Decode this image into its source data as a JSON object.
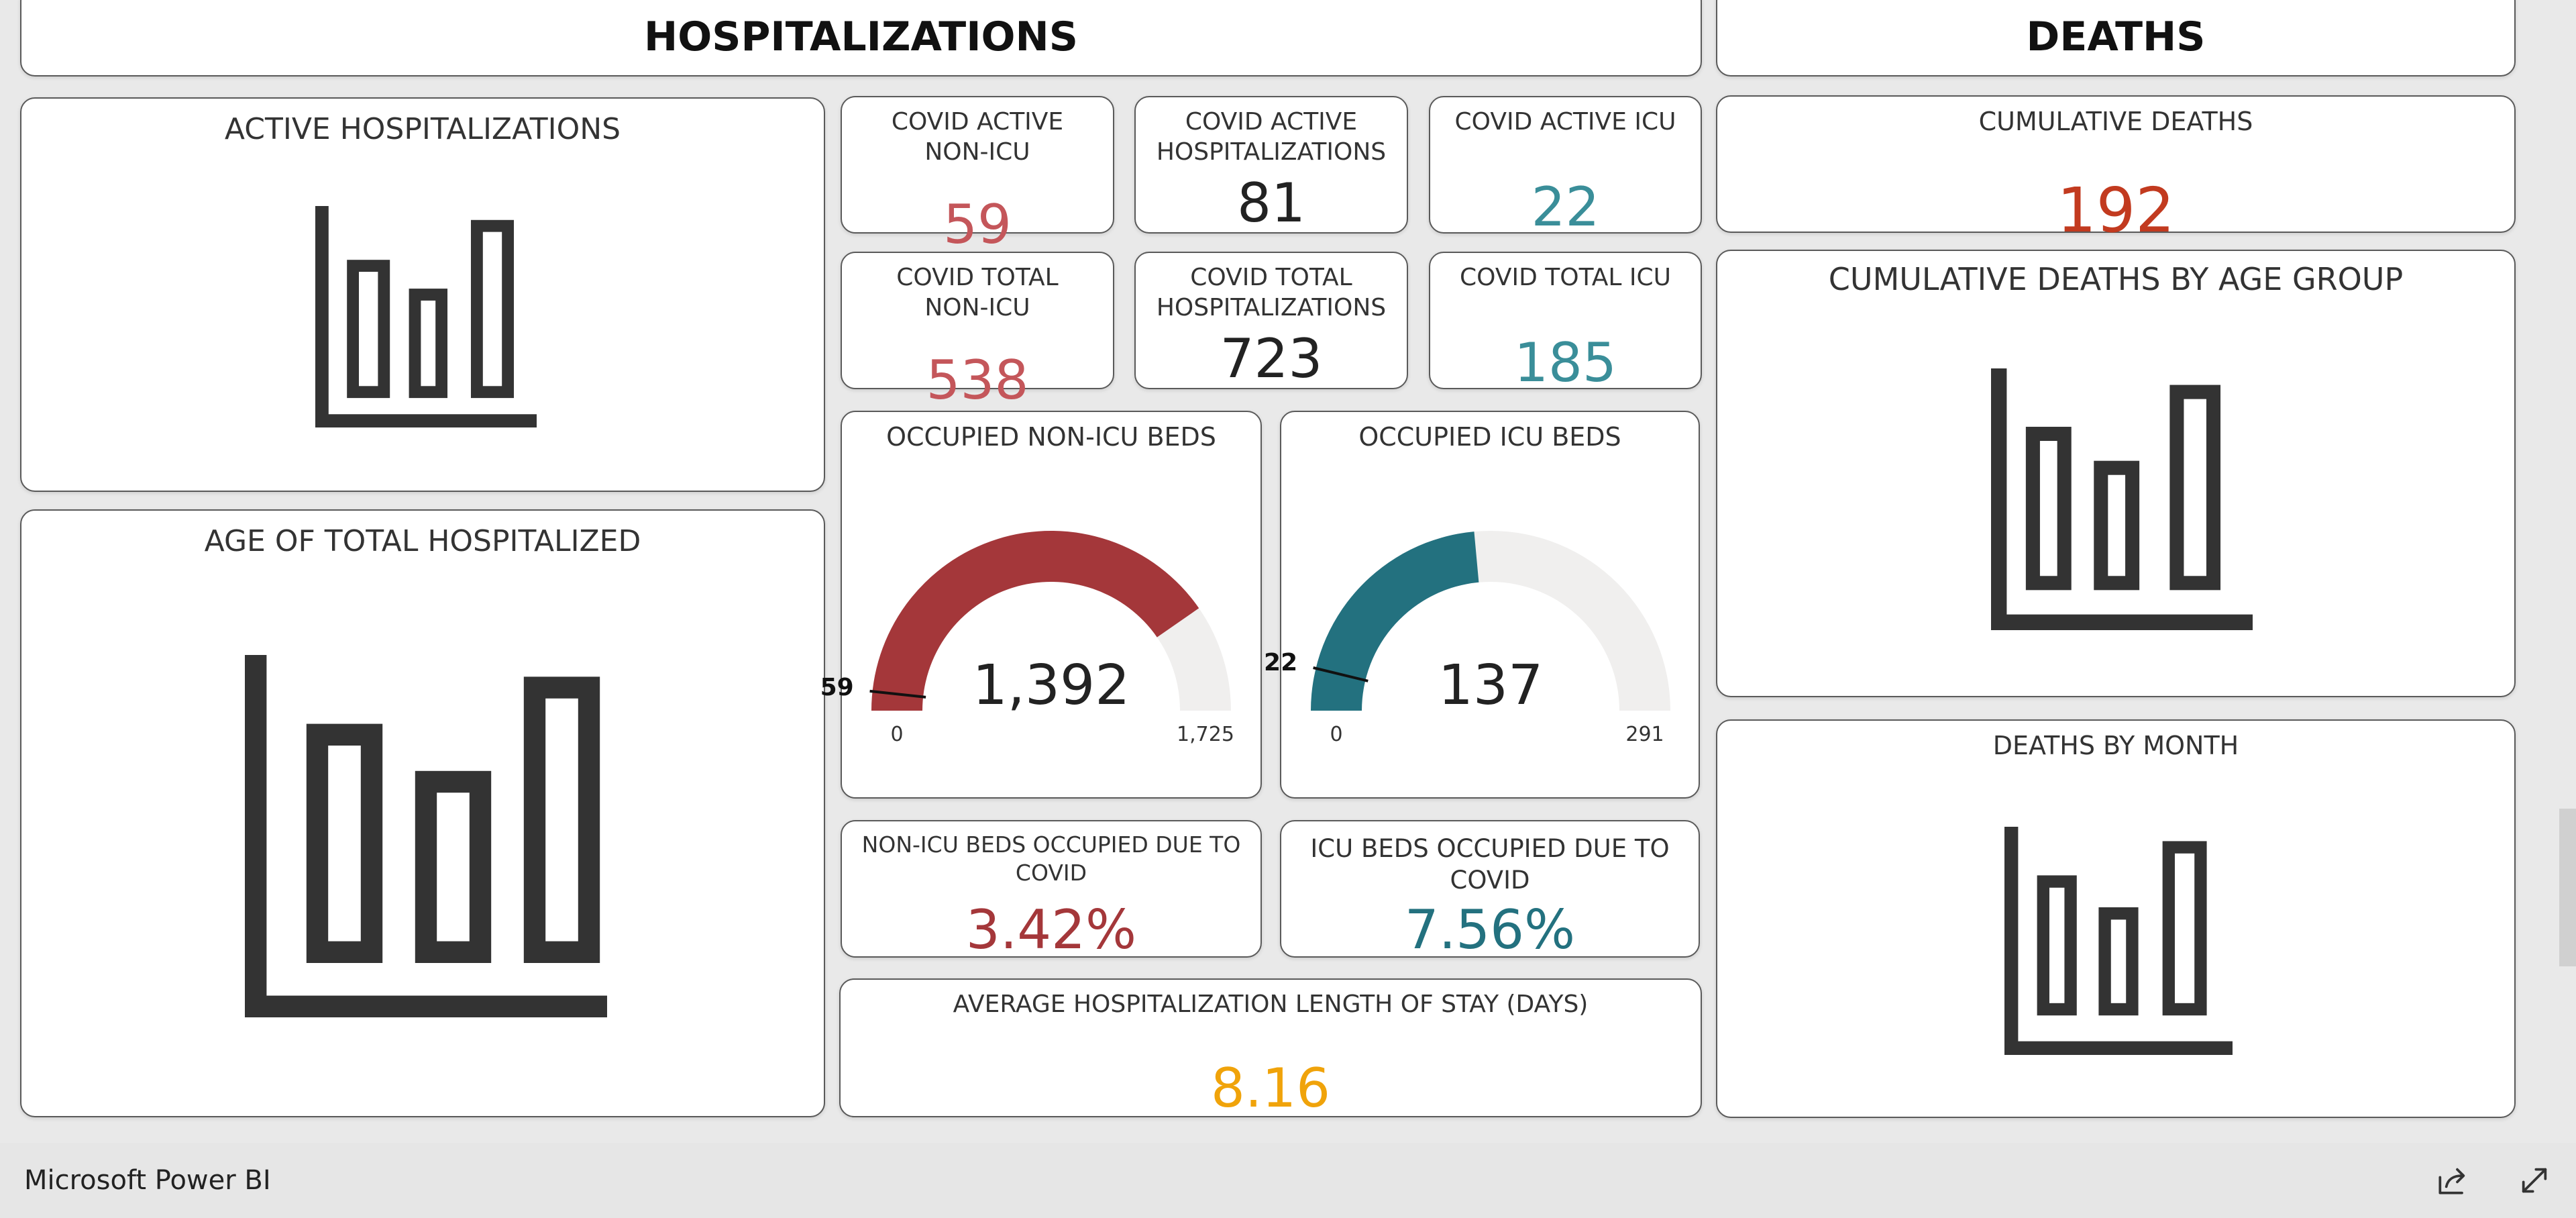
{
  "colors": {
    "red": "#a4373a",
    "salmon": "#c4565a",
    "teal": "#23717f",
    "teal_light": "#3a8e99",
    "orange_red": "#c23a1f",
    "amber": "#f0a30a",
    "gauge_track": "#f0efee",
    "dark": "#333333"
  },
  "hospitalizations": {
    "title": "HOSPITALIZATIONS"
  },
  "deaths": {
    "title": "DEATHS"
  },
  "active_hosp": {
    "title": "ACTIVE HOSPITALIZATIONS",
    "icon": "bar-chart-placeholder-icon"
  },
  "age_hosp": {
    "title": "AGE OF TOTAL HOSPITALIZED",
    "icon": "bar-chart-placeholder-icon"
  },
  "kpis": {
    "active_nonicu": {
      "title_line1": "COVID ACTIVE",
      "title_line2": "NON-ICU",
      "value": "59"
    },
    "active_hosp": {
      "title_line1": "COVID ACTIVE",
      "title_line2": "HOSPITALIZATIONS",
      "value": "81"
    },
    "active_icu": {
      "title": "COVID ACTIVE ICU",
      "value": "22"
    },
    "total_nonicu": {
      "title_line1": "COVID TOTAL",
      "title_line2": "NON-ICU",
      "value": "538"
    },
    "total_hosp": {
      "title_line1": "COVID TOTAL",
      "title_line2": "HOSPITALIZATIONS",
      "value": "723"
    },
    "total_icu": {
      "title": "COVID TOTAL ICU",
      "value": "185"
    },
    "nonicu_pct": {
      "title": "NON-ICU BEDS OCCUPIED DUE TO COVID",
      "value": "3.42%"
    },
    "icu_pct": {
      "title": "ICU BEDS OCCUPIED DUE TO COVID",
      "value": "7.56%"
    },
    "avg_stay": {
      "title": "AVERAGE HOSPITALIZATION LENGTH OF STAY (DAYS)",
      "value": "8.16"
    },
    "cum_deaths": {
      "title": "CUMULATIVE DEATHS",
      "value": "192"
    }
  },
  "gauges": {
    "nonicu": {
      "title": "OCCUPIED NON-ICU BEDS",
      "value": 1392,
      "value_label": "1,392",
      "min": 0,
      "min_label": "0",
      "max": 1725,
      "max_label": "1,725",
      "target": 59,
      "target_label": "59"
    },
    "icu": {
      "title": "OCCUPIED ICU BEDS",
      "value": 137,
      "value_label": "137",
      "min": 0,
      "min_label": "0",
      "max": 291,
      "max_label": "291",
      "target": 22,
      "target_label": "22"
    }
  },
  "deaths_by_age": {
    "title": "CUMULATIVE DEATHS BY AGE GROUP",
    "icon": "bar-chart-placeholder-icon"
  },
  "deaths_by_month": {
    "title": "DEATHS BY MONTH",
    "icon": "bar-chart-placeholder-icon"
  },
  "footer": {
    "title": "Microsoft Power BI",
    "share_icon": "share-icon",
    "expand_icon": "expand-icon"
  }
}
